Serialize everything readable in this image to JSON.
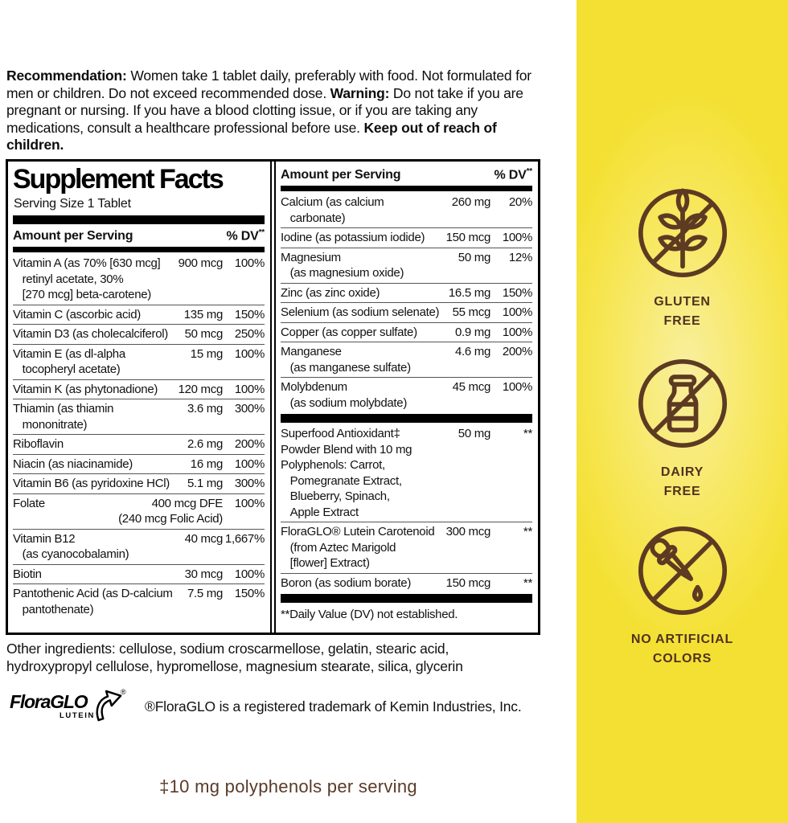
{
  "recommendation": {
    "segments": [
      {
        "t": "Recommendation: ",
        "b": true
      },
      {
        "t": "Women take 1 tablet daily, preferably with food. Not formulated for men or children. Do not exceed recommended dose. ",
        "b": false
      },
      {
        "t": "Warning: ",
        "b": true
      },
      {
        "t": "Do not take if you are pregnant or nursing. If you have a blood clotting issue, or if you are taking any medications, consult a healthcare professional before use. ",
        "b": false
      },
      {
        "t": "Keep out of reach of children.",
        "b": true
      }
    ]
  },
  "facts": {
    "title": "Supplement Facts",
    "serving_size": "Serving Size 1 Tablet",
    "header": {
      "amount_label": "Amount per Serving",
      "dv_label": "% DV",
      "dv_sup": "**"
    },
    "left_rows": [
      {
        "top": "none",
        "name": "Vitamin A (as 70% [630 mcg]\n   retinyl acetate, 30%\n   [270 mcg] beta-carotene)",
        "amount": "900 mcg",
        "dv": "100%"
      },
      {
        "top": "line",
        "name": "Vitamin C (ascorbic acid)",
        "amount": "135 mg",
        "dv": "150%"
      },
      {
        "top": "line",
        "name": "Vitamin D3 (as cholecalciferol)",
        "amount": "50 mcg",
        "dv": "250%"
      },
      {
        "top": "line",
        "name": "Vitamin E (as dl-alpha\n   tocopheryl acetate)",
        "amount": "15 mg",
        "dv": "100%"
      },
      {
        "top": "line",
        "name": "Vitamin K (as phytonadione)",
        "amount": "120 mcg",
        "dv": "100%"
      },
      {
        "top": "line",
        "name": "Thiamin (as thiamin\n   mononitrate)",
        "amount": "3.6 mg",
        "dv": "300%"
      },
      {
        "top": "line",
        "name": "Riboflavin",
        "amount": "2.6 mg",
        "dv": "200%"
      },
      {
        "top": "line",
        "name": "Niacin (as niacinamide)",
        "amount": "16 mg",
        "dv": "100%"
      },
      {
        "top": "line",
        "name": "Vitamin B6 (as pyridoxine HCl)",
        "amount": "5.1 mg",
        "dv": "300%"
      },
      {
        "top": "line",
        "name": "Folate",
        "amount": "400 mcg DFE\n(240 mcg Folic Acid)",
        "dv": "100%"
      },
      {
        "top": "line",
        "name": "Vitamin B12\n   (as cyanocobalamin)",
        "amount": "40 mcg",
        "dv": "1,667%"
      },
      {
        "top": "line",
        "name": "Biotin",
        "amount": "30 mcg",
        "dv": "100%"
      },
      {
        "top": "line",
        "name": "Pantothenic Acid (as D-calcium\n   pantothenate)",
        "amount": "7.5 mg",
        "dv": "150%"
      }
    ],
    "right_rows": [
      {
        "top": "none",
        "name": "Calcium (as calcium\n   carbonate)",
        "amount": "260 mg",
        "dv": "20%"
      },
      {
        "top": "line",
        "name": "Iodine (as potassium iodide)",
        "amount": "150 mcg",
        "dv": "100%"
      },
      {
        "top": "line",
        "name": "Magnesium\n   (as magnesium oxide)",
        "amount": "50 mg",
        "dv": "12%"
      },
      {
        "top": "line",
        "name": "Zinc (as zinc oxide)",
        "amount": "16.5 mg",
        "dv": "150%"
      },
      {
        "top": "line",
        "name": "Selenium (as sodium selenate)",
        "amount": "55 mcg",
        "dv": "100%"
      },
      {
        "top": "line",
        "name": "Copper (as copper sulfate)",
        "amount": "0.9 mg",
        "dv": "100%"
      },
      {
        "top": "line",
        "name": "Manganese\n   (as manganese sulfate)",
        "amount": "4.6 mg",
        "dv": "200%"
      },
      {
        "top": "line",
        "name": "Molybdenum\n   (as sodium molybdate)",
        "amount": "45 mcg",
        "dv": "100%"
      },
      {
        "top": "bar",
        "name": "Superfood Antioxidant‡\nPowder Blend with 10 mg\nPolyphenols: Carrot,\n   Pomegranate Extract,\n   Blueberry, Spinach,\n   Apple Extract",
        "amount": "50 mg",
        "dv": "**"
      },
      {
        "top": "line",
        "name": "FloraGLO® Lutein Carotenoid\n   (from Aztec Marigold\n   [flower] Extract)",
        "amount": "300 mcg",
        "dv": "**"
      },
      {
        "top": "line",
        "name": "Boron (as sodium borate)",
        "amount": "150 mcg",
        "dv": "**"
      },
      {
        "top": "bar",
        "note": "**Daily Value (DV) not established."
      }
    ]
  },
  "other_ingredients": "Other ingredients: cellulose, sodium croscarmellose, gelatin, stearic acid, hydroxypropyl cellulose, hypromellose, magnesium stearate, silica, glycerin",
  "floraglo": {
    "logo_main": "FloraGLO",
    "logo_sub": "LUTEIN",
    "logo_reg": "®",
    "trademark_text": "®FloraGLO is a registered trademark of Kemin Industries, Inc."
  },
  "footer_note": "‡10 mg polyphenols per serving",
  "badges": {
    "colors": {
      "brown": "#5d3a22",
      "yellow": "#f4e032",
      "yellow_light": "#f9ef9e"
    },
    "items": [
      {
        "icon": "gluten-free-icon",
        "label": "GLUTEN\nFREE"
      },
      {
        "icon": "dairy-free-icon",
        "label": "DAIRY\nFREE"
      },
      {
        "icon": "no-artificial-colors-icon",
        "label": "NO ARTIFICIAL\nCOLORS"
      }
    ]
  }
}
